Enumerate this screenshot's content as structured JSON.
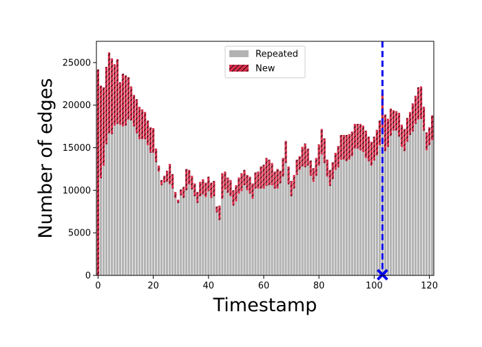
{
  "chart_data": {
    "type": "bar",
    "stacked": true,
    "xlabel": "Timestamp",
    "ylabel": "Number of edges",
    "xlim": [
      -0.6,
      121.6
    ],
    "ylim": [
      0,
      27500
    ],
    "xticks": [
      0,
      20,
      40,
      60,
      80,
      100,
      120
    ],
    "yticks": [
      0,
      5000,
      10000,
      15000,
      20000,
      25000
    ],
    "legend": {
      "placement": "top-center"
    },
    "series": [
      {
        "name": "Repeated",
        "color": "#b3b3b3",
        "values": [
          0,
          11400,
          12900,
          15400,
          16700,
          16600,
          17600,
          17800,
          17700,
          17500,
          17600,
          18300,
          18200,
          17500,
          16700,
          16000,
          16000,
          16000,
          15300,
          14400,
          14400,
          13300,
          12200,
          10600,
          10900,
          11000,
          10700,
          10200,
          9100,
          8500,
          9400,
          9100,
          10000,
          10700,
          10100,
          9300,
          8500,
          9300,
          9500,
          9200,
          9900,
          9100,
          9300,
          7400,
          6500,
          9000,
          10100,
          9700,
          9300,
          8200,
          8700,
          9600,
          9900,
          10600,
          10000,
          9600,
          9000,
          10200,
          10200,
          10200,
          10200,
          10500,
          10600,
          10600,
          10200,
          10200,
          10800,
          11600,
          13200,
          10700,
          9300,
          10200,
          11800,
          12400,
          12800,
          12700,
          12900,
          11700,
          11000,
          11700,
          12900,
          14200,
          13200,
          11600,
          10500,
          11300,
          12400,
          12700,
          13600,
          13600,
          13400,
          13600,
          14000,
          14900,
          14900,
          14700,
          14500,
          13800,
          13400,
          12900,
          13500,
          14100,
          15300,
          16600,
          14600,
          15100,
          16400,
          17000,
          17000,
          16300,
          15100,
          14600,
          15700,
          16500,
          16900,
          17800,
          18300,
          18400,
          17000,
          14700,
          15300,
          15900
        ],
        "new_in_chart": false
      },
      {
        "name": "New",
        "color": "#d62e4b",
        "values": [
          24200,
          10900,
          9200,
          9100,
          9500,
          8900,
          7200,
          7600,
          5000,
          6200,
          5900,
          5000,
          4000,
          3700,
          4000,
          3800,
          3500,
          3200,
          2900,
          3000,
          2900,
          1600,
          700,
          600,
          800,
          1300,
          2400,
          1700,
          700,
          400,
          700,
          1300,
          2500,
          1700,
          1600,
          1500,
          1300,
          1700,
          1800,
          1700,
          1700,
          1800,
          1800,
          700,
          1700,
          3000,
          2100,
          1800,
          1900,
          1800,
          1900,
          1900,
          2100,
          1800,
          1800,
          2000,
          1800,
          1900,
          2000,
          2600,
          2800,
          3300,
          3000,
          2600,
          2000,
          2300,
          1500,
          2200,
          2600,
          2100,
          1800,
          1600,
          1800,
          1600,
          2300,
          2800,
          2000,
          1800,
          1600,
          2100,
          2500,
          3000,
          2900,
          2000,
          1900,
          2000,
          2000,
          2500,
          2900,
          2900,
          3100,
          3000,
          2900,
          2900,
          2900,
          3100,
          3100,
          3200,
          2900,
          2800,
          2800,
          3000,
          2900,
          4800,
          4300,
          3300,
          3200,
          2400,
          2300,
          2800,
          2600,
          2600,
          2800,
          2700,
          3300,
          3300,
          3800,
          3800,
          2800,
          2100,
          2100,
          2900
        ]
      }
    ],
    "annotation": {
      "marker": "X",
      "x": 103,
      "y": 0,
      "vertical_line_x": 103,
      "color": "#0000ee",
      "style": "dashed"
    }
  }
}
